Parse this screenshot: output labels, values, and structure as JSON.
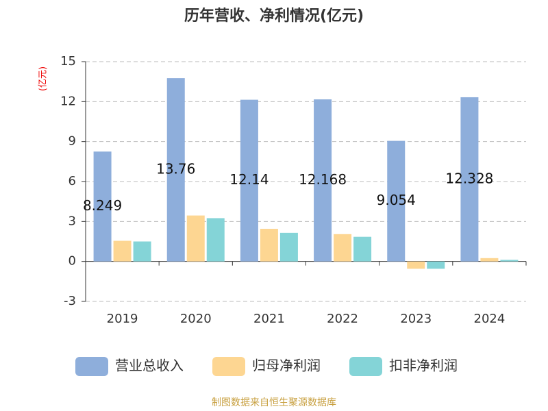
{
  "chart_data": {
    "type": "bar",
    "title": "历年营收、净利情况(亿元)",
    "y_label": "(亿元)",
    "categories": [
      "2019",
      "2020",
      "2021",
      "2022",
      "2023",
      "2024"
    ],
    "series": [
      {
        "name": "营业总收入",
        "color": "#8eaedb",
        "values": [
          8.249,
          13.76,
          12.14,
          12.168,
          9.054,
          12.328
        ]
      },
      {
        "name": "归母净利润",
        "color": "#fdd692",
        "values": [
          1.55,
          3.45,
          2.45,
          2.05,
          -0.55,
          0.25
        ]
      },
      {
        "name": "扣非净利润",
        "color": "#84d4d7",
        "values": [
          1.5,
          3.25,
          2.15,
          1.85,
          -0.55,
          0.12
        ]
      }
    ],
    "ylim": [
      -3,
      15
    ],
    "yticks": [
      -3,
      0,
      3,
      6,
      9,
      12,
      15
    ],
    "grid": true,
    "source": "制图数据来自恒生聚源数据库"
  }
}
